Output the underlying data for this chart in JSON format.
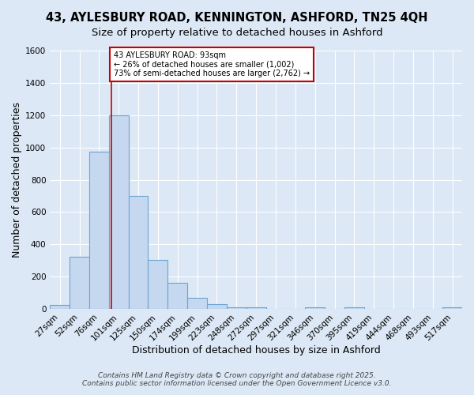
{
  "title1": "43, AYLESBURY ROAD, KENNINGTON, ASHFORD, TN25 4QH",
  "title2": "Size of property relative to detached houses in Ashford",
  "xlabel": "Distribution of detached houses by size in Ashford",
  "ylabel": "Number of detached properties",
  "bin_labels": [
    "27sqm",
    "52sqm",
    "76sqm",
    "101sqm",
    "125sqm",
    "150sqm",
    "174sqm",
    "199sqm",
    "223sqm",
    "248sqm",
    "272sqm",
    "297sqm",
    "321sqm",
    "346sqm",
    "370sqm",
    "395sqm",
    "419sqm",
    "444sqm",
    "468sqm",
    "493sqm",
    "517sqm"
  ],
  "bar_values": [
    25,
    325,
    975,
    1200,
    700,
    305,
    160,
    70,
    28,
    12,
    10,
    0,
    0,
    10,
    0,
    12,
    0,
    0,
    0,
    0,
    10
  ],
  "bar_color": "#c5d8f0",
  "bar_edge_color": "#6ba3d0",
  "vline_color": "#cc0000",
  "vline_x": 93,
  "annotation_text": "43 AYLESBURY ROAD: 93sqm\n← 26% of detached houses are smaller (1,002)\n73% of semi-detached houses are larger (2,762) →",
  "annotation_box_color": "#ffffff",
  "annotation_box_edge_color": "#cc0000",
  "ylim": [
    0,
    1600
  ],
  "yticks": [
    0,
    200,
    400,
    600,
    800,
    1000,
    1200,
    1400,
    1600
  ],
  "footer1": "Contains HM Land Registry data © Crown copyright and database right 2025.",
  "footer2": "Contains public sector information licensed under the Open Government Licence v3.0.",
  "background_color": "#dce8f5",
  "plot_background_color": "#dce8f5",
  "grid_color": "#ffffff",
  "title1_fontsize": 10.5,
  "title2_fontsize": 9.5,
  "axis_label_fontsize": 9,
  "tick_fontsize": 7.5,
  "annotation_fontsize": 7,
  "footer_fontsize": 6.5
}
